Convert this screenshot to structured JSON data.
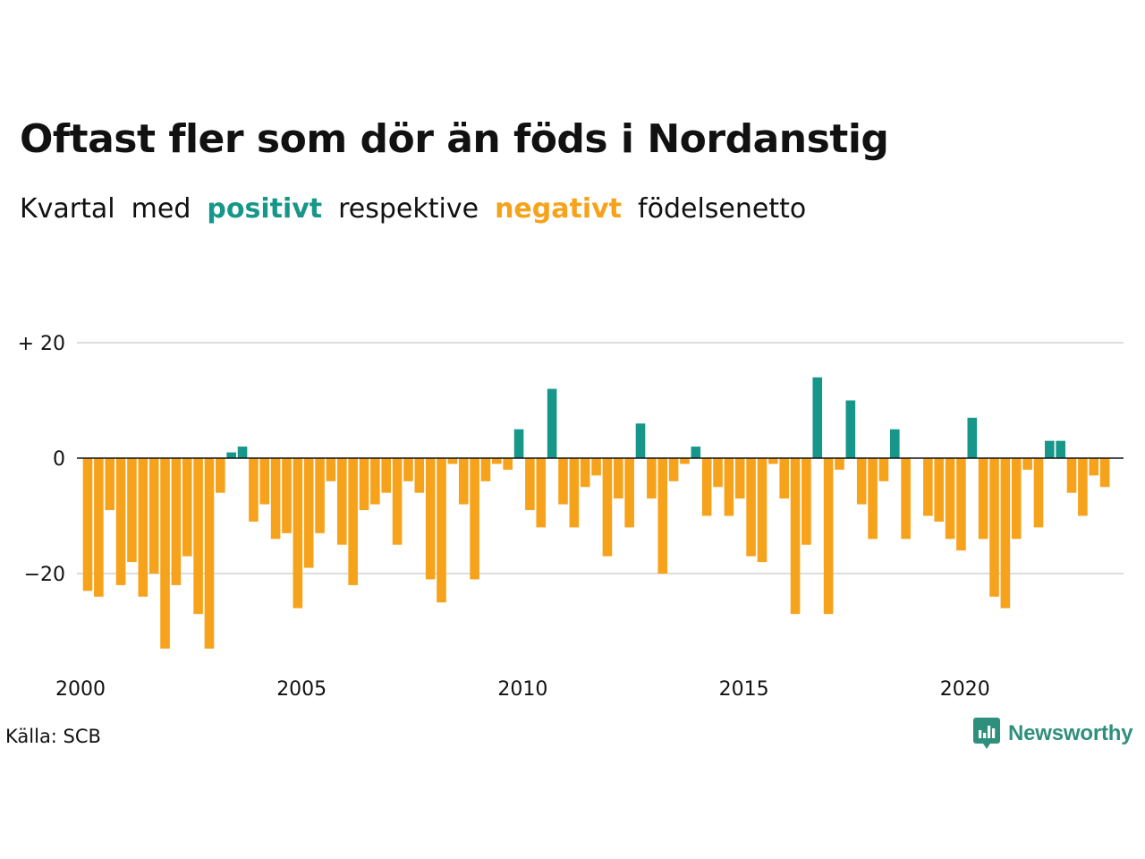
{
  "header": {
    "title": "Oftast fler som dör än föds i Nordanstig",
    "subtitle": {
      "part1": "Kvartal",
      "part2": "med",
      "positive_word": "positivt",
      "part3": "respektive",
      "negative_word": "negativt",
      "part4": "födelsenetto"
    }
  },
  "colors": {
    "positive": "#17968a",
    "negative": "#f7a21b",
    "text": "#111111",
    "grid": "#dddddd",
    "brand": "#2f8f7d"
  },
  "footer": {
    "source": "Källa: SCB",
    "brand": "Newsworthy",
    "brand_icon": "newsworthy-logo-icon"
  },
  "chart_data": {
    "type": "bar",
    "title": "",
    "xlabel": "",
    "ylabel": "",
    "x_start": "2000 Q1",
    "quarters_per_year": 4,
    "xticks": [
      2000,
      2005,
      2010,
      2015,
      2020
    ],
    "yticks": [
      20,
      0,
      -20
    ],
    "ytick_labels": [
      "+ 20",
      "0",
      "−20"
    ],
    "ylim": [
      -36,
      30
    ],
    "grid": true,
    "legend": "none",
    "values": [
      -23,
      -24,
      -9,
      -22,
      -18,
      -24,
      -20,
      -33,
      -22,
      -17,
      -27,
      -33,
      -6,
      1,
      2,
      -11,
      -8,
      -14,
      -13,
      -26,
      -19,
      -13,
      -4,
      -15,
      -22,
      -9,
      -8,
      -6,
      -15,
      -4,
      -6,
      -21,
      -25,
      -1,
      -8,
      -21,
      -4,
      -1,
      -2,
      5,
      -9,
      -12,
      12,
      -8,
      -12,
      -5,
      -3,
      -17,
      -7,
      -12,
      6,
      -7,
      -20,
      -4,
      -1,
      2,
      -10,
      -5,
      -10,
      -7,
      -17,
      -18,
      -1,
      -7,
      -27,
      -15,
      14,
      -27,
      -2,
      10,
      -8,
      -14,
      -4,
      5,
      -14,
      0,
      -10,
      -11,
      -14,
      -16,
      7,
      -14,
      -24,
      -26,
      -14,
      -2,
      -12,
      3,
      3,
      -6,
      -10,
      -3,
      -5
    ]
  }
}
